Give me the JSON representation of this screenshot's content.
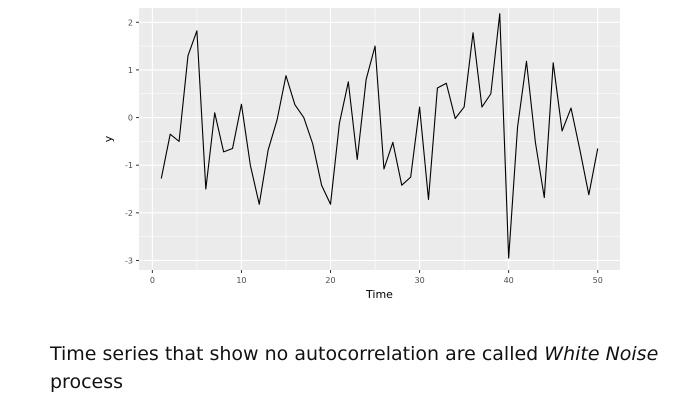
{
  "chart_data": {
    "type": "line",
    "title": "",
    "xlabel": "Time",
    "ylabel": "y",
    "xlim": [
      -1.5,
      52.5
    ],
    "ylim": [
      -3.2,
      2.3
    ],
    "xticks": [
      0,
      10,
      20,
      30,
      40,
      50
    ],
    "yticks": [
      -3,
      -2,
      -1,
      0,
      1,
      2
    ],
    "grid": true,
    "panel_color": "#ebebeb",
    "grid_color": "#ffffff",
    "line_color": "#000000",
    "series": [
      {
        "name": "y",
        "x": [
          1,
          2,
          3,
          4,
          5,
          6,
          7,
          8,
          9,
          10,
          11,
          12,
          13,
          14,
          15,
          16,
          17,
          18,
          19,
          20,
          21,
          22,
          23,
          24,
          25,
          26,
          27,
          28,
          29,
          30,
          31,
          32,
          33,
          34,
          35,
          36,
          37,
          38,
          39,
          40,
          41,
          42,
          43,
          44,
          45,
          46,
          47,
          48,
          49,
          50
        ],
        "values": [
          -1.28,
          -0.35,
          -0.5,
          1.3,
          1.82,
          -1.5,
          0.1,
          -0.72,
          -0.65,
          0.28,
          -1.0,
          -1.82,
          -0.68,
          -0.05,
          0.88,
          0.27,
          0.0,
          -0.55,
          -1.42,
          -1.82,
          -0.12,
          0.75,
          -0.88,
          0.8,
          1.5,
          -1.08,
          -0.52,
          -1.42,
          -1.25,
          0.22,
          -1.72,
          0.62,
          0.72,
          -0.02,
          0.22,
          1.78,
          0.22,
          0.5,
          2.18,
          -2.95,
          -0.2,
          1.18,
          -0.52,
          -1.68,
          1.15,
          -0.28,
          0.2,
          -0.68,
          -1.62,
          -0.65
        ]
      }
    ]
  },
  "caption": {
    "lead": "Time series that show no autocorrelation are called ",
    "term": "White Noise",
    "tail": " process"
  }
}
